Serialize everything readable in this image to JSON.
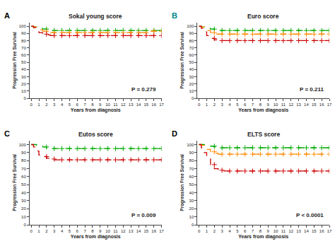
{
  "chart_data": [
    {
      "type": "line",
      "title": "Sokal young score",
      "xlabel": "Years from diagnosis",
      "ylabel": "Progression Free Survival",
      "label": {
        "text": "A",
        "color": "#000000"
      },
      "annotations": [
        {
          "text": "P = 0.279"
        }
      ],
      "xlim": [
        -0.2,
        17
      ],
      "xticks": [
        0,
        1,
        2,
        3,
        4,
        5,
        6,
        7,
        8,
        9,
        10,
        11,
        12,
        13,
        14,
        15,
        16,
        17
      ],
      "ylim": [
        0,
        105
      ],
      "yticks": [
        0,
        10,
        20,
        30,
        40,
        50,
        60,
        70,
        80,
        90,
        100
      ],
      "grid": false,
      "series": [
        {
          "color": "#00aa00",
          "line_style": "dashed",
          "marker": "plus",
          "x": [
            0,
            0.3,
            0.7,
            1,
            1.5,
            2,
            2.5,
            3,
            3.5,
            4,
            5,
            6,
            7,
            8,
            9,
            10,
            11,
            12,
            13,
            14,
            15,
            16,
            17
          ],
          "values": [
            100,
            99,
            98,
            97,
            96,
            95,
            94,
            94,
            94,
            94,
            94,
            94,
            94,
            94,
            94,
            94,
            94,
            94,
            94,
            94,
            94,
            94,
            94
          ],
          "censored_x": [
            2,
            3,
            4,
            5,
            6,
            7,
            8,
            9,
            10,
            11,
            12,
            13,
            14,
            15,
            16,
            17
          ],
          "censored_values": [
            96,
            94,
            94,
            94,
            94,
            94,
            94,
            94,
            94,
            94,
            94,
            94,
            94,
            94,
            94,
            94
          ]
        },
        {
          "color": "#ff8800",
          "line_style": "dashed",
          "marker": "plus",
          "x": [
            0,
            0.3,
            0.7,
            1,
            1.5,
            2,
            2.5,
            3,
            3.5,
            4,
            5,
            6,
            7,
            8,
            9,
            10,
            11,
            12,
            13,
            14,
            15,
            16,
            17
          ],
          "values": [
            100,
            99,
            97,
            95,
            93,
            91,
            91,
            91,
            91,
            91,
            91,
            91,
            91,
            91,
            91,
            91,
            91,
            91,
            91,
            91,
            93,
            93,
            93
          ],
          "censored_x": [
            2,
            3,
            4,
            5,
            6,
            7,
            8,
            9,
            10,
            11,
            12,
            13,
            14,
            15,
            16,
            17
          ],
          "censored_values": [
            93,
            91,
            91,
            91,
            91,
            91,
            91,
            91,
            91,
            91,
            91,
            91,
            91,
            91,
            93,
            93
          ]
        },
        {
          "color": "#cc0000",
          "line_style": "dashed",
          "marker": "plus",
          "x": [
            0,
            0.3,
            0.7,
            1,
            1.5,
            2,
            2.5,
            3,
            3.5,
            4,
            5,
            6,
            7,
            8,
            9,
            10,
            11,
            12,
            13,
            14,
            15,
            16,
            17
          ],
          "values": [
            100,
            98,
            94,
            91,
            89,
            88,
            87,
            87,
            87,
            87,
            87,
            87,
            87,
            87,
            87,
            87,
            87,
            87,
            87,
            87,
            87,
            87,
            87
          ],
          "censored_x": [
            2,
            3,
            4,
            5,
            6,
            7,
            8,
            9,
            10,
            11,
            12,
            13,
            14,
            15,
            16,
            17
          ],
          "censored_values": [
            89,
            87,
            87,
            87,
            87,
            87,
            87,
            87,
            87,
            87,
            87,
            87,
            87,
            87,
            87,
            87
          ]
        }
      ]
    },
    {
      "type": "line",
      "title": "Euro score",
      "xlabel": "Years from diagnosis",
      "ylabel": "Progression Free Survival",
      "label": {
        "text": "B",
        "color": "#008888"
      },
      "annotations": [
        {
          "text": "P = 0.211"
        }
      ],
      "xlim": [
        -0.2,
        17
      ],
      "xticks": [
        0,
        1,
        2,
        3,
        4,
        5,
        6,
        7,
        8,
        9,
        10,
        11,
        12,
        13,
        14,
        15,
        16,
        17
      ],
      "ylim": [
        0,
        105
      ],
      "yticks": [
        0,
        10,
        20,
        30,
        40,
        50,
        60,
        70,
        80,
        90,
        100
      ],
      "grid": false,
      "series": [
        {
          "color": "#00aa00",
          "line_style": "dashed",
          "marker": "plus",
          "x": [
            0,
            0.3,
            0.7,
            1,
            1.5,
            2,
            2.5,
            3,
            3.5,
            4,
            5,
            6,
            7,
            8,
            9,
            10,
            11,
            12,
            13,
            14,
            15,
            16,
            17
          ],
          "values": [
            100,
            99,
            98,
            97,
            96,
            95,
            94,
            94,
            94,
            94,
            94,
            94,
            94,
            94,
            94,
            94,
            94,
            94,
            94,
            94,
            94,
            94,
            94
          ],
          "censored_x": [
            2,
            3,
            4,
            5,
            6,
            7,
            8,
            9,
            10,
            11,
            12,
            13,
            14,
            15,
            16,
            17
          ],
          "censored_values": [
            96,
            94,
            94,
            94,
            94,
            94,
            94,
            94,
            94,
            94,
            94,
            94,
            94,
            94,
            94,
            94
          ]
        },
        {
          "color": "#ff8800",
          "line_style": "dashed",
          "marker": "plus",
          "x": [
            0,
            0.3,
            0.7,
            1,
            1.5,
            2,
            2.5,
            3,
            3.5,
            4,
            5,
            6,
            7,
            8,
            9,
            10,
            11,
            12,
            13,
            14,
            15,
            16,
            17
          ],
          "values": [
            100,
            99,
            97,
            94,
            91,
            89,
            89,
            89,
            89,
            89,
            89,
            89,
            89,
            89,
            89,
            89,
            89,
            89,
            89,
            89,
            89,
            89,
            89
          ],
          "censored_x": [
            2,
            3,
            4,
            5,
            6,
            7,
            8,
            9,
            10,
            11,
            12,
            13,
            14,
            15,
            16,
            17
          ],
          "censored_values": [
            91,
            89,
            89,
            89,
            89,
            89,
            89,
            89,
            89,
            89,
            89,
            89,
            89,
            89,
            89,
            89
          ]
        },
        {
          "color": "#cc0000",
          "line_style": "dashed",
          "marker": "plus",
          "x": [
            0,
            0.3,
            0.7,
            1,
            1.5,
            2,
            2.5,
            3,
            3.5,
            4,
            5,
            6,
            7,
            8,
            9,
            10,
            11,
            12,
            13,
            14,
            15,
            16,
            17
          ],
          "values": [
            100,
            97,
            92,
            87,
            83,
            81,
            80,
            80,
            80,
            80,
            80,
            80,
            80,
            80,
            80,
            80,
            80,
            80,
            80,
            80,
            80,
            80,
            80
          ],
          "censored_x": [
            2,
            3,
            4,
            5,
            6,
            7,
            8,
            9,
            10,
            11,
            12,
            13,
            14,
            15,
            16,
            17
          ],
          "censored_values": [
            83,
            80,
            80,
            80,
            80,
            80,
            80,
            80,
            80,
            80,
            80,
            80,
            80,
            80,
            80,
            80
          ]
        }
      ]
    },
    {
      "type": "line",
      "title": "Eutos score",
      "xlabel": "Years from diagnosis",
      "ylabel": "Progression Free Survival",
      "label": {
        "text": "C",
        "color": "#000000"
      },
      "annotations": [
        {
          "text": "P = 0.009"
        }
      ],
      "xlim": [
        -0.2,
        17
      ],
      "xticks": [
        0,
        1,
        2,
        3,
        4,
        5,
        6,
        7,
        8,
        9,
        10,
        11,
        12,
        13,
        14,
        15,
        16,
        17
      ],
      "ylim": [
        0,
        105
      ],
      "yticks": [
        0,
        10,
        20,
        30,
        40,
        50,
        60,
        70,
        80,
        90,
        100
      ],
      "grid": false,
      "series": [
        {
          "color": "#00aa00",
          "line_style": "dashed",
          "marker": "plus",
          "x": [
            0,
            0.3,
            0.7,
            1,
            1.5,
            2,
            2.5,
            3,
            3.5,
            4,
            5,
            6,
            7,
            8,
            9,
            10,
            11,
            12,
            13,
            14,
            15,
            16,
            17
          ],
          "values": [
            100,
            100,
            99,
            98,
            97,
            96,
            95,
            95,
            95,
            95,
            95,
            95,
            95,
            95,
            95,
            95,
            95,
            95,
            95,
            95,
            95,
            95,
            95
          ],
          "censored_x": [
            2,
            3,
            4,
            5,
            6,
            7,
            8,
            9,
            10,
            11,
            12,
            13,
            14,
            15,
            16,
            17
          ],
          "censored_values": [
            97,
            95,
            95,
            95,
            95,
            95,
            95,
            95,
            95,
            95,
            95,
            95,
            95,
            95,
            95,
            95
          ]
        },
        {
          "color": "#cc0000",
          "line_style": "dashed",
          "marker": "plus",
          "x": [
            0,
            0.3,
            0.7,
            1,
            1.5,
            2,
            2.5,
            3,
            3.5,
            4,
            5,
            6,
            7,
            8,
            9,
            10,
            11,
            12,
            13,
            14,
            15,
            16,
            17
          ],
          "values": [
            100,
            97,
            92,
            87,
            85,
            83,
            82,
            81,
            81,
            81,
            81,
            81,
            81,
            81,
            81,
            81,
            81,
            81,
            81,
            81,
            81,
            81,
            81
          ],
          "censored_x": [
            2,
            3,
            4,
            5,
            6,
            7,
            8,
            9,
            10,
            11,
            12,
            13,
            14,
            15,
            16,
            17
          ],
          "censored_values": [
            85,
            82,
            81,
            81,
            81,
            81,
            81,
            81,
            81,
            81,
            81,
            81,
            81,
            81,
            81,
            81
          ]
        }
      ]
    },
    {
      "type": "line",
      "title": "ELTS score",
      "xlabel": "Years from diagnosis",
      "ylabel": "Progression Free Survival",
      "label": {
        "text": "D",
        "color": "#000000"
      },
      "annotations": [
        {
          "text": "P < 0.0001"
        }
      ],
      "xlim": [
        -0.2,
        17
      ],
      "xticks": [
        0,
        1,
        2,
        3,
        4,
        5,
        6,
        7,
        8,
        9,
        10,
        11,
        12,
        13,
        14,
        15,
        16,
        17
      ],
      "ylim": [
        0,
        105
      ],
      "yticks": [
        0,
        10,
        20,
        30,
        40,
        50,
        60,
        70,
        80,
        90,
        100
      ],
      "grid": false,
      "series": [
        {
          "color": "#00aa00",
          "line_style": "dashed",
          "marker": "plus",
          "x": [
            0,
            0.3,
            0.7,
            1,
            1.5,
            2,
            2.5,
            3,
            3.5,
            4,
            5,
            6,
            7,
            8,
            9,
            10,
            11,
            12,
            13,
            14,
            15,
            16,
            17
          ],
          "values": [
            100,
            100,
            99,
            99,
            98,
            97,
            96,
            96,
            96,
            96,
            96,
            96,
            96,
            96,
            96,
            96,
            96,
            96,
            96,
            96,
            96,
            96,
            96
          ],
          "censored_x": [
            2,
            3,
            4,
            5,
            6,
            7,
            8,
            9,
            10,
            11,
            12,
            13,
            14,
            15,
            16,
            17
          ],
          "censored_values": [
            98,
            96,
            96,
            96,
            96,
            96,
            96,
            96,
            96,
            96,
            96,
            96,
            96,
            96,
            96,
            96
          ]
        },
        {
          "color": "#ff8800",
          "line_style": "dashed",
          "marker": "plus",
          "x": [
            0,
            0.3,
            0.7,
            1,
            1.5,
            2,
            2.5,
            3,
            3.5,
            4,
            5,
            6,
            7,
            8,
            9,
            10,
            11,
            12,
            13,
            14,
            15,
            16,
            17
          ],
          "values": [
            100,
            99,
            97,
            94,
            91,
            89,
            88,
            88,
            88,
            88,
            88,
            88,
            88,
            88,
            88,
            88,
            88,
            88,
            88,
            88,
            88,
            88,
            88
          ],
          "censored_x": [
            2,
            3,
            4,
            5,
            6,
            7,
            8,
            9,
            10,
            11,
            12,
            13,
            14,
            15,
            16,
            17
          ],
          "censored_values": [
            91,
            88,
            88,
            88,
            88,
            88,
            88,
            88,
            88,
            88,
            88,
            88,
            88,
            88,
            88,
            88
          ]
        },
        {
          "color": "#cc0000",
          "line_style": "dashed",
          "marker": "plus",
          "x": [
            0,
            0.3,
            0.7,
            1,
            1.5,
            2,
            2.5,
            3,
            3.5,
            4,
            5,
            6,
            7,
            8,
            9,
            10,
            11,
            12,
            13,
            14,
            15,
            16,
            17
          ],
          "values": [
            100,
            96,
            90,
            82,
            75,
            70,
            68,
            67,
            67,
            67,
            67,
            67,
            67,
            67,
            67,
            67,
            67,
            67,
            67,
            67,
            67,
            67,
            67
          ],
          "censored_x": [
            2,
            3,
            4,
            5,
            6,
            7,
            8,
            9,
            10,
            11,
            12,
            13,
            14,
            15,
            16,
            17
          ],
          "censored_values": [
            75,
            68,
            67,
            67,
            67,
            67,
            67,
            67,
            67,
            67,
            67,
            67,
            67,
            67,
            67,
            67
          ]
        }
      ]
    }
  ]
}
